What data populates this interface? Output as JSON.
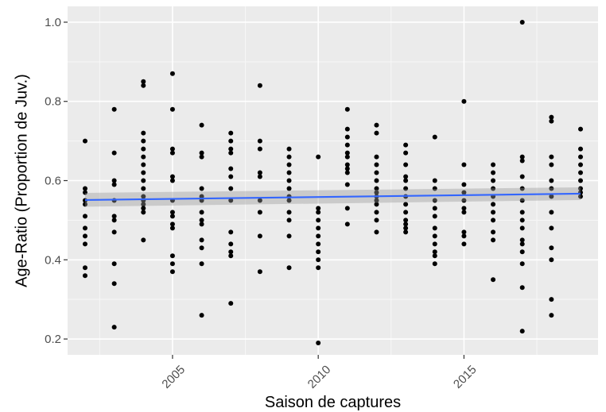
{
  "chart_data": {
    "type": "scatter",
    "xlabel": "Saison de captures",
    "ylabel": "Age-Ratio (Proportion de Juv.)",
    "xlim": [
      2001.4,
      2019.6
    ],
    "ylim": [
      0.16,
      1.04
    ],
    "x_ticks": [
      2005,
      2010,
      2015
    ],
    "x_tick_labels": [
      "2005",
      "2010",
      "2015"
    ],
    "y_ticks": [
      0.2,
      0.4,
      0.6,
      0.8,
      1.0
    ],
    "y_tick_labels": [
      "0.2",
      "0.4",
      "0.6",
      "0.8",
      "1.0"
    ],
    "grid": true,
    "background_color": "#ebebeb",
    "point_color": "#000000",
    "trend": {
      "method": "linear",
      "x": [
        2002,
        2019
      ],
      "y": [
        0.551,
        0.567
      ],
      "ci_lower": [
        0.534,
        0.551
      ],
      "ci_upper": [
        0.569,
        0.583
      ],
      "color": "#3366ff",
      "band_color": "#999999"
    },
    "points": [
      {
        "x": 2002,
        "y": [
          0.7,
          0.58,
          0.57,
          0.55,
          0.54,
          0.51,
          0.48,
          0.46,
          0.44,
          0.38,
          0.36
        ]
      },
      {
        "x": 2003,
        "y": [
          0.78,
          0.67,
          0.6,
          0.59,
          0.55,
          0.51,
          0.5,
          0.47,
          0.39,
          0.34,
          0.23
        ]
      },
      {
        "x": 2004,
        "y": [
          0.85,
          0.84,
          0.72,
          0.7,
          0.68,
          0.66,
          0.64,
          0.62,
          0.6,
          0.58,
          0.56,
          0.55,
          0.54,
          0.53,
          0.52,
          0.45
        ]
      },
      {
        "x": 2005,
        "y": [
          0.87,
          0.78,
          0.68,
          0.67,
          0.61,
          0.6,
          0.55,
          0.52,
          0.51,
          0.49,
          0.48,
          0.41,
          0.39,
          0.37
        ]
      },
      {
        "x": 2006,
        "y": [
          0.74,
          0.67,
          0.66,
          0.58,
          0.56,
          0.55,
          0.52,
          0.5,
          0.49,
          0.45,
          0.43,
          0.39,
          0.26
        ]
      },
      {
        "x": 2007,
        "y": [
          0.72,
          0.7,
          0.68,
          0.67,
          0.63,
          0.61,
          0.58,
          0.55,
          0.47,
          0.44,
          0.42,
          0.41,
          0.29
        ]
      },
      {
        "x": 2008,
        "y": [
          0.84,
          0.7,
          0.68,
          0.62,
          0.61,
          0.55,
          0.52,
          0.46,
          0.37
        ]
      },
      {
        "x": 2009,
        "y": [
          0.68,
          0.66,
          0.64,
          0.62,
          0.6,
          0.58,
          0.56,
          0.55,
          0.52,
          0.5,
          0.46,
          0.38
        ]
      },
      {
        "x": 2010,
        "y": [
          0.66,
          0.53,
          0.52,
          0.5,
          0.48,
          0.46,
          0.44,
          0.42,
          0.4,
          0.38,
          0.19
        ]
      },
      {
        "x": 2011,
        "y": [
          0.78,
          0.73,
          0.71,
          0.69,
          0.67,
          0.66,
          0.64,
          0.63,
          0.62,
          0.59,
          0.53,
          0.49
        ]
      },
      {
        "x": 2012,
        "y": [
          0.74,
          0.72,
          0.66,
          0.64,
          0.62,
          0.6,
          0.58,
          0.57,
          0.56,
          0.55,
          0.54,
          0.52,
          0.5,
          0.47
        ]
      },
      {
        "x": 2013,
        "y": [
          0.69,
          0.67,
          0.64,
          0.61,
          0.6,
          0.58,
          0.56,
          0.54,
          0.52,
          0.5,
          0.49,
          0.48,
          0.47
        ]
      },
      {
        "x": 2014,
        "y": [
          0.71,
          0.6,
          0.58,
          0.55,
          0.53,
          0.51,
          0.48,
          0.46,
          0.44,
          0.42,
          0.41,
          0.39
        ]
      },
      {
        "x": 2015,
        "y": [
          0.8,
          0.64,
          0.59,
          0.57,
          0.55,
          0.53,
          0.52,
          0.47,
          0.46,
          0.44
        ]
      },
      {
        "x": 2016,
        "y": [
          0.64,
          0.62,
          0.6,
          0.58,
          0.56,
          0.54,
          0.52,
          0.5,
          0.47,
          0.45,
          0.35
        ]
      },
      {
        "x": 2017,
        "y": [
          1.0,
          0.66,
          0.65,
          0.61,
          0.58,
          0.55,
          0.52,
          0.5,
          0.48,
          0.45,
          0.44,
          0.42,
          0.39,
          0.33,
          0.22
        ]
      },
      {
        "x": 2018,
        "y": [
          0.76,
          0.75,
          0.66,
          0.64,
          0.6,
          0.58,
          0.56,
          0.52,
          0.48,
          0.43,
          0.4,
          0.3,
          0.26
        ]
      },
      {
        "x": 2019,
        "y": [
          0.73,
          0.68,
          0.66,
          0.64,
          0.62,
          0.6,
          0.58,
          0.57,
          0.56
        ]
      }
    ]
  }
}
